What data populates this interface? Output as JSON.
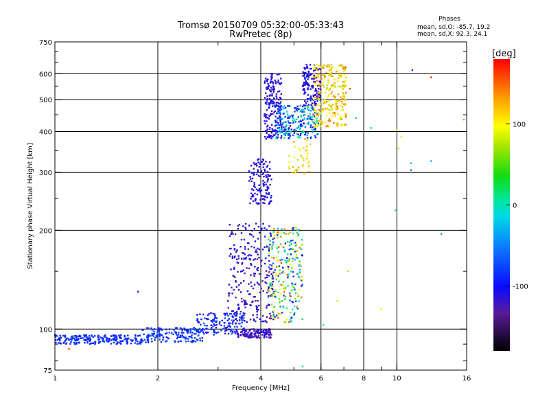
{
  "chart_data": {
    "type": "scatter",
    "title": "Tromsø 20150709 05:32:00-05:33:43",
    "subtitle": "RwPretec (8p)",
    "xlabel": "Frequency [MHz]",
    "ylabel": "Stationary phase Virtual Height [km]",
    "x_scale": "log",
    "y_scale": "log",
    "xlim": [
      1,
      16
    ],
    "ylim": [
      75,
      750
    ],
    "x_ticks": [
      1,
      2,
      4,
      6,
      8,
      10,
      16
    ],
    "y_ticks": [
      75,
      100,
      200,
      300,
      400,
      500,
      600,
      750
    ],
    "x_gridlines": [
      2,
      4,
      6,
      8,
      10
    ],
    "y_gridlines": [
      100,
      200,
      300,
      400,
      500,
      600
    ],
    "grid": true,
    "phase_box": {
      "title": "Phases",
      "line_o": "mean, sd,O: -85.7, 19.2",
      "line_x": "mean, sd,X:  92.3, 24.1"
    },
    "colorbar": {
      "label": "[deg]",
      "ticks": [
        100,
        0,
        -100
      ],
      "range": [
        -180,
        180
      ]
    },
    "clusters": [
      {
        "f": [
          1.0,
          1.8
        ],
        "h": [
          90,
          96
        ],
        "phase": [
          -95,
          -75
        ],
        "n": 220
      },
      {
        "f": [
          1.8,
          2.7
        ],
        "h": [
          91,
          101
        ],
        "phase": [
          -95,
          -65
        ],
        "n": 160
      },
      {
        "f": [
          2.6,
          3.6
        ],
        "h": [
          96,
          112
        ],
        "phase": [
          -120,
          -60
        ],
        "n": 150
      },
      {
        "f": [
          3.4,
          4.3
        ],
        "h": [
          94,
          100
        ],
        "phase": [
          -135,
          -105
        ],
        "n": 130
      },
      {
        "f": [
          3.2,
          4.4
        ],
        "h": [
          105,
          210
        ],
        "phase": [
          -140,
          -95
        ],
        "n": 260
      },
      {
        "f": [
          4.2,
          5.3
        ],
        "h": [
          105,
          205
        ],
        "phase": [
          -120,
          160
        ],
        "n": 260
      },
      {
        "f": [
          3.7,
          4.3
        ],
        "h": [
          240,
          330
        ],
        "phase": [
          -125,
          -95
        ],
        "n": 130
      },
      {
        "f": [
          4.1,
          4.6
        ],
        "h": [
          380,
          600
        ],
        "phase": [
          -130,
          -95
        ],
        "n": 190
      },
      {
        "f": [
          4.4,
          5.9
        ],
        "h": [
          380,
          480
        ],
        "phase": [
          -120,
          20
        ],
        "n": 230
      },
      {
        "f": [
          4.8,
          5.6
        ],
        "h": [
          290,
          380
        ],
        "phase": [
          70,
          140
        ],
        "n": 40
      },
      {
        "f": [
          5.3,
          6.0
        ],
        "h": [
          480,
          640
        ],
        "phase": [
          -125,
          -95
        ],
        "n": 130
      },
      {
        "f": [
          5.7,
          7.1
        ],
        "h": [
          410,
          640
        ],
        "phase": [
          70,
          150
        ],
        "n": 260
      }
    ],
    "outliers": [
      {
        "f": 1.1,
        "h": 87,
        "phase": 160
      },
      {
        "f": 1.75,
        "h": 130,
        "phase": -100
      },
      {
        "f": 5.3,
        "h": 77,
        "phase": -10
      },
      {
        "f": 6.1,
        "h": 103,
        "phase": -10
      },
      {
        "f": 6.7,
        "h": 122,
        "phase": 80
      },
      {
        "f": 7.2,
        "h": 150,
        "phase": 120
      },
      {
        "f": 7.3,
        "h": 540,
        "phase": 160
      },
      {
        "f": 7.6,
        "h": 440,
        "phase": 20
      },
      {
        "f": 8.4,
        "h": 410,
        "phase": 20
      },
      {
        "f": 9.0,
        "h": 115,
        "phase": 100
      },
      {
        "f": 9.9,
        "h": 230,
        "phase": 20
      },
      {
        "f": 10.0,
        "h": 405,
        "phase": 110
      },
      {
        "f": 10.1,
        "h": 355,
        "phase": 110
      },
      {
        "f": 10.3,
        "h": 385,
        "phase": 110
      },
      {
        "f": 11.0,
        "h": 320,
        "phase": -20
      },
      {
        "f": 11.0,
        "h": 305,
        "phase": -60
      },
      {
        "f": 11.1,
        "h": 615,
        "phase": -90
      },
      {
        "f": 12.6,
        "h": 585,
        "phase": 170
      },
      {
        "f": 12.6,
        "h": 325,
        "phase": -30
      },
      {
        "f": 13.5,
        "h": 195,
        "phase": -50
      },
      {
        "f": 15.7,
        "h": 435,
        "phase": 140
      }
    ]
  }
}
